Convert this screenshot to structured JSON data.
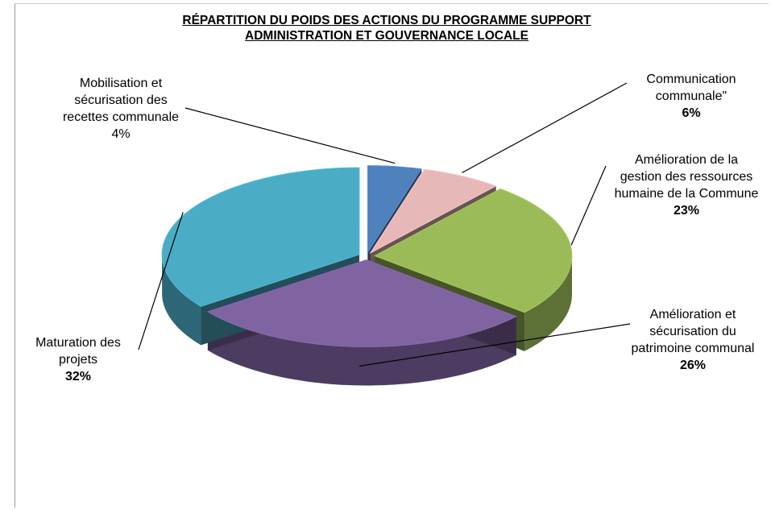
{
  "chart_data": {
    "type": "pie",
    "title": "RÉPARTITION DU POIDS DES ACTIONS DU PROGRAMME SUPPORT ADMINISTRATION ET GOUVERNANCE LOCALE",
    "categories": [
      "Mobilisation et sécurisation des recettes communale",
      "Communication communale\"",
      "Amélioration de la gestion des ressources humaine de la Commune",
      "Amélioration et sécurisation du patrimoine communal",
      "Maturation des projets"
    ],
    "values": [
      4,
      6,
      23,
      26,
      32
    ],
    "value_labels": [
      "4%",
      "6%",
      "23%",
      "26%",
      "32%"
    ],
    "colors": [
      "#4f81bd",
      "#e6b9b8",
      "#9bbb59",
      "#8064a2",
      "#4bacc6"
    ]
  }
}
